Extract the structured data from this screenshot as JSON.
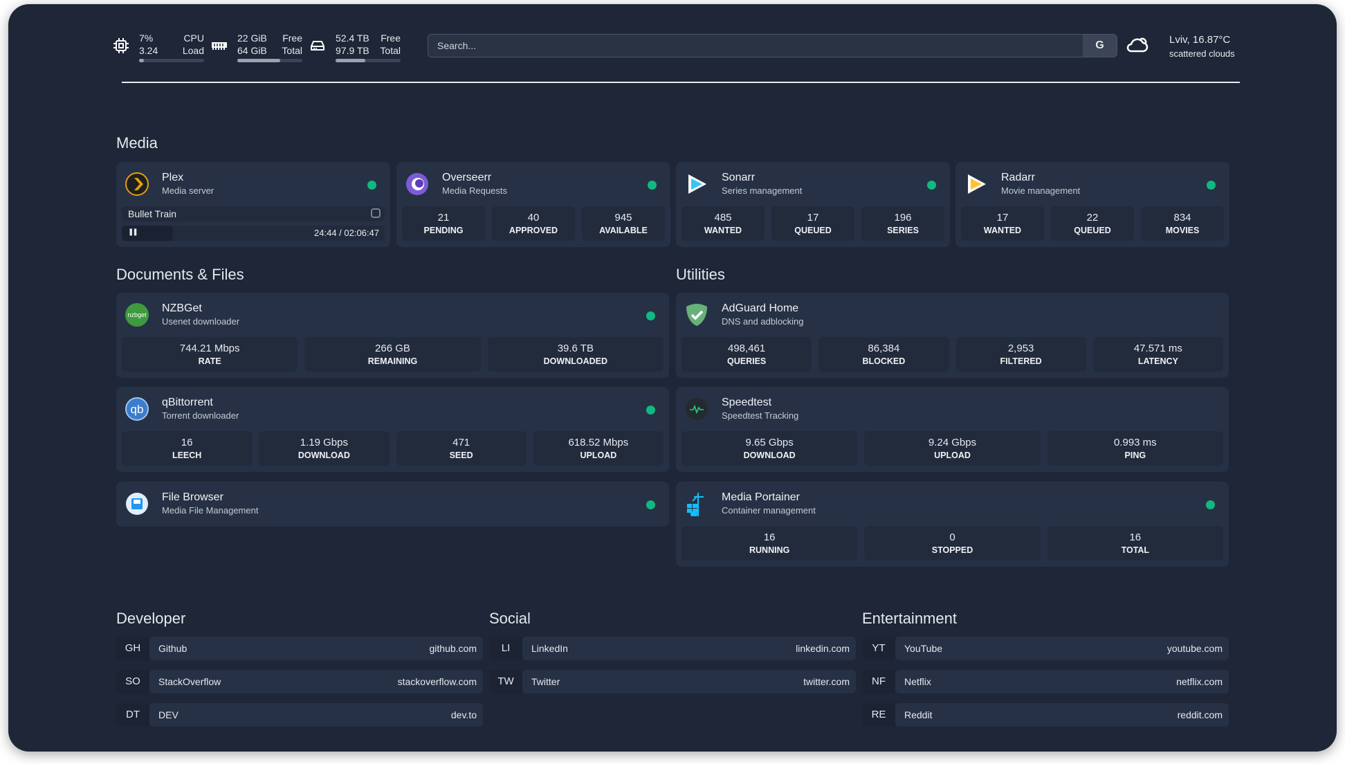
{
  "header": {
    "cpu": {
      "percent": "7%",
      "load": "3.24",
      "label1": "CPU",
      "label2": "Load",
      "usage": 0.07
    },
    "ram": {
      "free": "22 GiB",
      "total": "64 GiB",
      "label1": "Free",
      "label2": "Total",
      "usage": 0.66
    },
    "disk": {
      "free": "52.4 TB",
      "total": "97.9 TB",
      "label1": "Free",
      "label2": "Total",
      "usage": 0.46
    },
    "search": {
      "placeholder": "Search...",
      "engine_label": "G"
    },
    "weather": {
      "location_temp": "Lviv, 16.87°C",
      "description": "scattered clouds",
      "icon": "cloud-sun-icon"
    }
  },
  "colors": {
    "status_online": "#10b981",
    "background": "#1e2637",
    "card": "#273145"
  },
  "sections": {
    "media": "Media",
    "documents": "Documents & Files",
    "utilities": "Utilities",
    "developer": "Developer",
    "social": "Social",
    "entertainment": "Entertainment"
  },
  "media": [
    {
      "name": "Plex",
      "desc": "Media server",
      "icon": "plex-icon",
      "now_playing": {
        "title": "Bullet Train",
        "time": "24:44 / 02:06:47",
        "progress": 0.195
      }
    },
    {
      "name": "Overseerr",
      "desc": "Media Requests",
      "icon": "overseerr-icon",
      "stats": [
        {
          "v": "21",
          "l": "PENDING"
        },
        {
          "v": "40",
          "l": "APPROVED"
        },
        {
          "v": "945",
          "l": "AVAILABLE"
        }
      ]
    },
    {
      "name": "Sonarr",
      "desc": "Series management",
      "icon": "sonarr-icon",
      "stats": [
        {
          "v": "485",
          "l": "WANTED"
        },
        {
          "v": "17",
          "l": "QUEUED"
        },
        {
          "v": "196",
          "l": "SERIES"
        }
      ]
    },
    {
      "name": "Radarr",
      "desc": "Movie management",
      "icon": "radarr-icon",
      "stats": [
        {
          "v": "17",
          "l": "WANTED"
        },
        {
          "v": "22",
          "l": "QUEUED"
        },
        {
          "v": "834",
          "l": "MOVIES"
        }
      ]
    }
  ],
  "documents": [
    {
      "name": "NZBGet",
      "desc": "Usenet downloader",
      "icon": "nzbget-icon",
      "icon_text": "nzbget",
      "stats": [
        {
          "v": "744.21 Mbps",
          "l": "RATE"
        },
        {
          "v": "266 GB",
          "l": "REMAINING"
        },
        {
          "v": "39.6 TB",
          "l": "DOWNLOADED"
        }
      ]
    },
    {
      "name": "qBittorrent",
      "desc": "Torrent downloader",
      "icon": "qbittorrent-icon",
      "icon_text": "qb",
      "stats": [
        {
          "v": "16",
          "l": "LEECH"
        },
        {
          "v": "1.19 Gbps",
          "l": "DOWNLOAD"
        },
        {
          "v": "471",
          "l": "SEED"
        },
        {
          "v": "618.52 Mbps",
          "l": "UPLOAD"
        }
      ]
    },
    {
      "name": "File Browser",
      "desc": "Media File Management",
      "icon": "file-browser-icon",
      "stats": []
    }
  ],
  "utilities": [
    {
      "name": "AdGuard Home",
      "desc": "DNS and adblocking",
      "icon": "adguard-icon",
      "stats": [
        {
          "v": "498,461",
          "l": "QUERIES"
        },
        {
          "v": "86,384",
          "l": "BLOCKED"
        },
        {
          "v": "2,953",
          "l": "FILTERED"
        },
        {
          "v": "47.571 ms",
          "l": "LATENCY"
        }
      ],
      "status": false
    },
    {
      "name": "Speedtest",
      "desc": "Speedtest Tracking",
      "icon": "speedtest-icon",
      "stats": [
        {
          "v": "9.65 Gbps",
          "l": "DOWNLOAD"
        },
        {
          "v": "9.24 Gbps",
          "l": "UPLOAD"
        },
        {
          "v": "0.993 ms",
          "l": "PING"
        }
      ],
      "status": false
    },
    {
      "name": "Media Portainer",
      "desc": "Container management",
      "icon": "portainer-icon",
      "stats": [
        {
          "v": "16",
          "l": "RUNNING"
        },
        {
          "v": "0",
          "l": "STOPPED"
        },
        {
          "v": "16",
          "l": "TOTAL"
        }
      ]
    }
  ],
  "bookmarks": {
    "developer": [
      {
        "abbr": "GH",
        "name": "Github",
        "url": "github.com"
      },
      {
        "abbr": "SO",
        "name": "StackOverflow",
        "url": "stackoverflow.com"
      },
      {
        "abbr": "DT",
        "name": "DEV",
        "url": "dev.to"
      }
    ],
    "social": [
      {
        "abbr": "LI",
        "name": "LinkedIn",
        "url": "linkedin.com"
      },
      {
        "abbr": "TW",
        "name": "Twitter",
        "url": "twitter.com"
      }
    ],
    "entertainment": [
      {
        "abbr": "YT",
        "name": "YouTube",
        "url": "youtube.com"
      },
      {
        "abbr": "NF",
        "name": "Netflix",
        "url": "netflix.com"
      },
      {
        "abbr": "RE",
        "name": "Reddit",
        "url": "reddit.com"
      }
    ]
  }
}
